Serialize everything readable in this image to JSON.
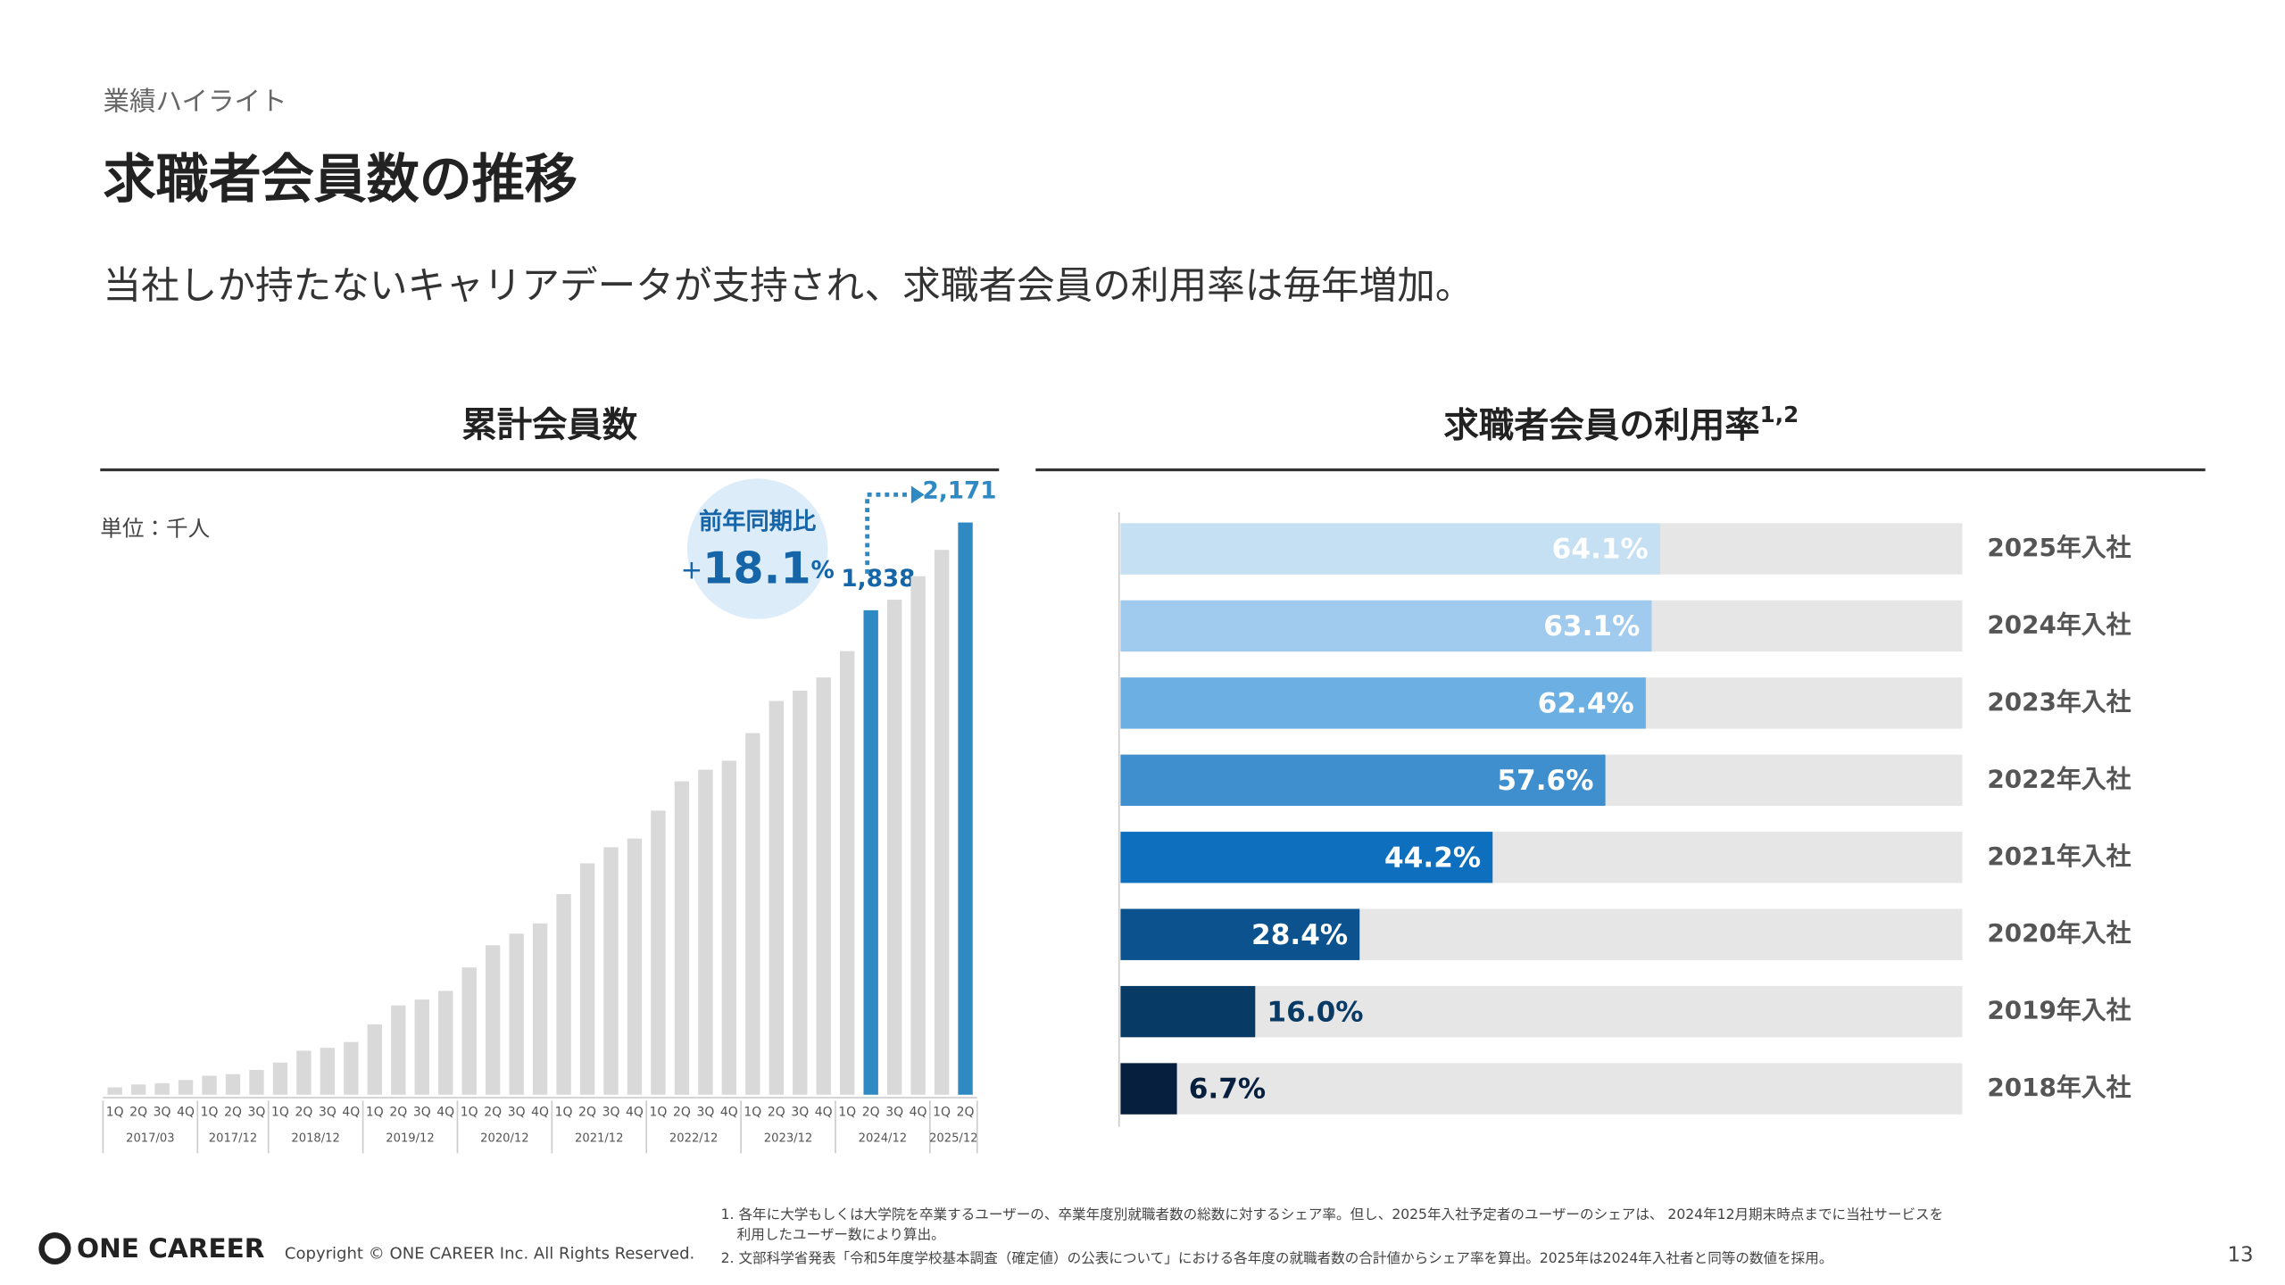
{
  "header": {
    "section": "業績ハイライト",
    "title": "求職者会員数の推移",
    "subtitle": "当社しか持たないキャリアデータが支持され、求職者会員の利用率は毎年増加。"
  },
  "chart_data": [
    {
      "type": "bar",
      "title": "累計会員数",
      "unit_label": "単位：千人",
      "categories": [
        "1Q",
        "2Q",
        "3Q",
        "4Q",
        "1Q",
        "2Q",
        "3Q",
        "1Q",
        "2Q",
        "3Q",
        "4Q",
        "1Q",
        "2Q",
        "3Q",
        "4Q",
        "1Q",
        "2Q",
        "3Q",
        "4Q",
        "1Q",
        "2Q",
        "3Q",
        "4Q",
        "1Q",
        "2Q",
        "3Q",
        "4Q",
        "1Q",
        "2Q",
        "3Q",
        "4Q",
        "1Q",
        "2Q",
        "3Q",
        "4Q",
        "1Q",
        "2Q"
      ],
      "x_groups": [
        "2017/03",
        "2017/03",
        "2017/03",
        "2017/03",
        "2017/12",
        "2017/12",
        "2017/12",
        "2018/12",
        "2018/12",
        "2018/12",
        "2018/12",
        "2019/12",
        "2019/12",
        "2019/12",
        "2019/12",
        "2020/12",
        "2020/12",
        "2020/12",
        "2020/12",
        "2021/12",
        "2021/12",
        "2021/12",
        "2021/12",
        "2022/12",
        "2022/12",
        "2022/12",
        "2022/12",
        "2023/12",
        "2023/12",
        "2023/12",
        "2023/12",
        "2024/12",
        "2024/12",
        "2024/12",
        "2024/12",
        "2025/12",
        "2025/12"
      ],
      "values": [
        28,
        39,
        44,
        56,
        72,
        78,
        94,
        122,
        167,
        178,
        200,
        267,
        339,
        361,
        394,
        483,
        567,
        611,
        650,
        761,
        878,
        939,
        972,
        1078,
        1189,
        1233,
        1267,
        1372,
        1494,
        1533,
        1583,
        1683,
        1838,
        1878,
        1967,
        2067,
        2171
      ],
      "value_labels": [
        null,
        null,
        null,
        null,
        null,
        null,
        null,
        null,
        null,
        null,
        null,
        null,
        null,
        null,
        null,
        null,
        null,
        null,
        null,
        null,
        null,
        null,
        null,
        null,
        null,
        null,
        null,
        null,
        null,
        null,
        null,
        null,
        "1,838",
        null,
        null,
        null,
        "2,171"
      ],
      "colors": [
        "#d9d9d9",
        "#d9d9d9",
        "#d9d9d9",
        "#d9d9d9",
        "#d9d9d9",
        "#d9d9d9",
        "#d9d9d9",
        "#d9d9d9",
        "#d9d9d9",
        "#d9d9d9",
        "#d9d9d9",
        "#d9d9d9",
        "#d9d9d9",
        "#d9d9d9",
        "#d9d9d9",
        "#d9d9d9",
        "#d9d9d9",
        "#d9d9d9",
        "#d9d9d9",
        "#d9d9d9",
        "#d9d9d9",
        "#d9d9d9",
        "#d9d9d9",
        "#d9d9d9",
        "#d9d9d9",
        "#d9d9d9",
        "#d9d9d9",
        "#d9d9d9",
        "#d9d9d9",
        "#d9d9d9",
        "#d9d9d9",
        "#d9d9d9",
        "#2f8ac4",
        "#d9d9d9",
        "#d9d9d9",
        "#d9d9d9",
        "#2f8ac4"
      ],
      "annotation": {
        "title": "前年同期比",
        "sign": "+",
        "value": "18.1",
        "unit": "%"
      }
    },
    {
      "type": "hbar",
      "title": "求職者会員の利用率",
      "title_superscript": "1,2",
      "categories": [
        "2025年入社",
        "2024年入社",
        "2023年入社",
        "2022年入社",
        "2021年入社",
        "2020年入社",
        "2019年入社",
        "2018年入社"
      ],
      "values": [
        64.1,
        63.1,
        62.4,
        57.6,
        44.2,
        28.4,
        16.0,
        6.7
      ],
      "value_labels": [
        "64.1%",
        "63.1%",
        "62.4%",
        "57.6%",
        "44.2%",
        "28.4%",
        "16.0%",
        "6.7%"
      ],
      "colors": [
        "#c5dff3",
        "#a0cbef",
        "#6cb0e3",
        "#3f8fcf",
        "#0f6fbf",
        "#0b528f",
        "#083a66",
        "#061f3f"
      ],
      "xlim": [
        0,
        100
      ]
    }
  ],
  "footer": {
    "logo": "ONE CAREER",
    "copyright": "Copyright © ONE CAREER Inc. All Rights Reserved.",
    "notes": [
      [
        "1. 各年に大学もしくは大学院を卒業するユーザーの、卒業年度別就職者数の総数に対するシェア率。但し、2025年入社予定者のユーザーのシェアは、 2024年12月期末時点までに当社サービスを",
        "利用したユーザー数により算出。"
      ],
      [
        "2. 文部科学省発表「令和5年度学校基本調査（確定値）の公表について」における各年度の就職者数の合計値からシェア率を算出。2025年は2024年入社者と同等の数値を採用。"
      ]
    ],
    "page_number": "13"
  }
}
